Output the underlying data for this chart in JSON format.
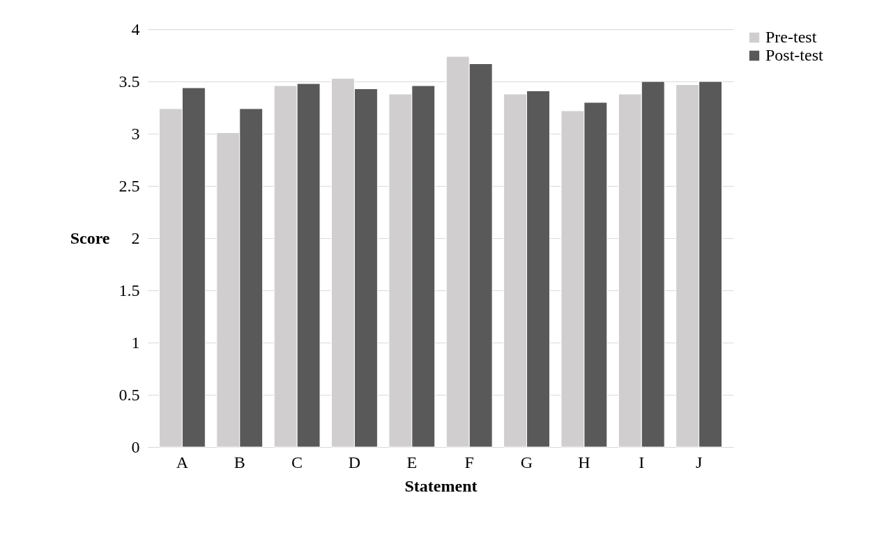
{
  "chart_data": {
    "type": "bar",
    "xlabel": "Statement",
    "ylabel": "Score",
    "categories": [
      "A",
      "B",
      "C",
      "D",
      "E",
      "F",
      "G",
      "H",
      "I",
      "J"
    ],
    "series": [
      {
        "name": "Pre-test",
        "color": "#d0cece",
        "values": [
          3.24,
          3.01,
          3.46,
          3.53,
          3.38,
          3.74,
          3.38,
          3.22,
          3.38,
          3.47
        ]
      },
      {
        "name": "Post-test",
        "color": "#595959",
        "values": [
          3.44,
          3.24,
          3.48,
          3.43,
          3.46,
          3.67,
          3.41,
          3.3,
          3.5,
          3.5
        ]
      }
    ],
    "ylim": [
      0,
      4
    ],
    "yticks": [
      0,
      0.5,
      1,
      1.5,
      2,
      2.5,
      3,
      3.5,
      4
    ],
    "grid": "y",
    "legend": "right"
  }
}
